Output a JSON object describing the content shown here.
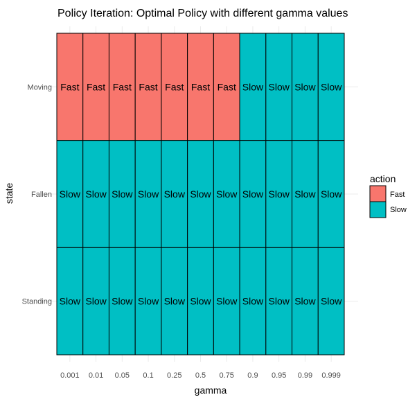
{
  "chart_data": {
    "type": "heatmap",
    "title": "Policy Iteration: Optimal Policy with different gamma values",
    "xlabel": "gamma",
    "ylabel": "state",
    "x_categories": [
      "0.001",
      "0.01",
      "0.05",
      "0.1",
      "0.25",
      "0.5",
      "0.75",
      "0.9",
      "0.95",
      "0.99",
      "0.999"
    ],
    "y_categories": [
      "Moving",
      "Fallen",
      "Standing"
    ],
    "cells": [
      [
        "Fast",
        "Fast",
        "Fast",
        "Fast",
        "Fast",
        "Fast",
        "Fast",
        "Slow",
        "Slow",
        "Slow",
        "Slow"
      ],
      [
        "Slow",
        "Slow",
        "Slow",
        "Slow",
        "Slow",
        "Slow",
        "Slow",
        "Slow",
        "Slow",
        "Slow",
        "Slow"
      ],
      [
        "Slow",
        "Slow",
        "Slow",
        "Slow",
        "Slow",
        "Slow",
        "Slow",
        "Slow",
        "Slow",
        "Slow",
        "Slow"
      ]
    ],
    "legend": {
      "title": "action",
      "position": "right",
      "entries": [
        {
          "label": "Fast",
          "color": "#F8766D"
        },
        {
          "label": "Slow",
          "color": "#00BFC4"
        }
      ]
    },
    "grid": true
  }
}
